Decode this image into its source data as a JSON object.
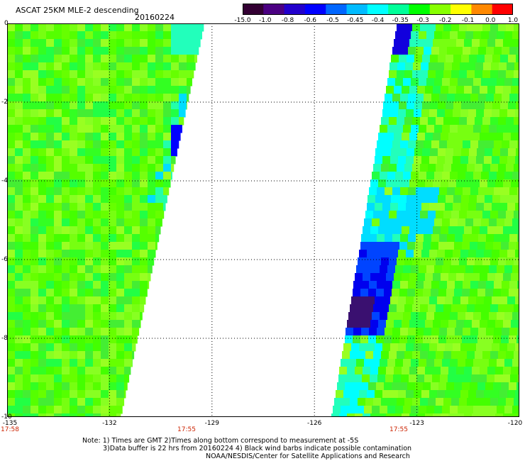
{
  "header": {
    "title": "ASCAT 25KM MLE-2 descending",
    "date": "20160224"
  },
  "colorbar": {
    "labels": [
      "-15.0",
      "-1.0",
      "-0.8",
      "-0.6",
      "-0.5",
      "-0.45",
      "-0.4",
      "-0.35",
      "-0.3",
      "-0.2",
      "-0.1",
      "0.0",
      "1.0"
    ],
    "colors": [
      "#330033",
      "#4b0082",
      "#2200cc",
      "#0000ff",
      "#0066ff",
      "#00bbff",
      "#00ffff",
      "#00ff99",
      "#00ff00",
      "#88ff00",
      "#ffff00",
      "#ff8800",
      "#ff0000"
    ]
  },
  "axes": {
    "x_ticks": [
      "-135",
      "-132",
      "-129",
      "-126",
      "-123",
      "-120"
    ],
    "y_ticks": [
      "0",
      "-2",
      "-4",
      "-6",
      "-8",
      "-10"
    ],
    "time_labels": [
      "17:58",
      "17:55",
      "17:55"
    ]
  },
  "map_data": {
    "lon_range": [
      -135,
      -120
    ],
    "lat_range": [
      -10,
      0
    ],
    "swaths": [
      {
        "name": "west",
        "values_typical": "-0.3"
      },
      {
        "name": "east",
        "values_typical": "-0.3"
      }
    ]
  },
  "notes": {
    "line1": "Note: 1) Times are GMT 2)Times along bottom correspond to measurement at -5S",
    "line2": "3)Data buffer is 22 hrs from 20160224 4) Black wind barbs indicate possible contamination",
    "line3": "NOAA/NESDIS/Center for Satellite Applications and Research"
  }
}
